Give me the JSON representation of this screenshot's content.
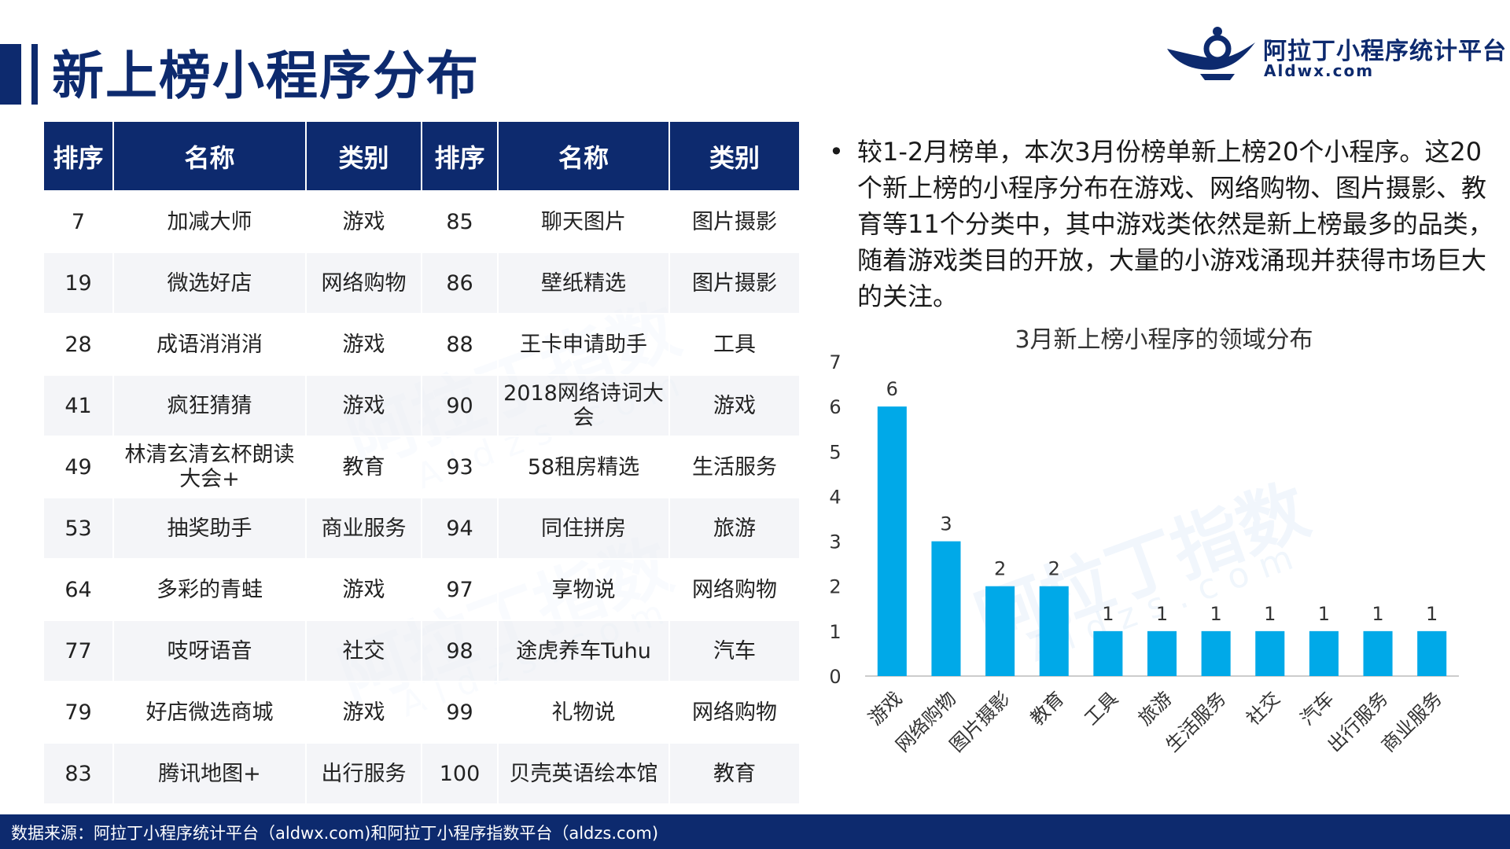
{
  "header": {
    "title": "新上榜小程序分布",
    "logo_name": "阿拉丁小程序统计平台",
    "logo_url": "Aldwx.com"
  },
  "watermark": {
    "text": "阿拉丁指数",
    "sub": "Aldzs.com"
  },
  "table": {
    "headers": [
      "排序",
      "名称",
      "类别",
      "排序",
      "名称",
      "类别"
    ],
    "rows": [
      [
        "7",
        "加减大师",
        "游戏",
        "85",
        "聊天图片",
        "图片摄影"
      ],
      [
        "19",
        "微选好店",
        "网络购物",
        "86",
        "壁纸精选",
        "图片摄影"
      ],
      [
        "28",
        "成语消消消",
        "游戏",
        "88",
        "王卡申请助手",
        "工具"
      ],
      [
        "41",
        "疯狂猜猜",
        "游戏",
        "90",
        "2018网络诗词大会",
        "游戏"
      ],
      [
        "49",
        "林清玄清玄杯朗读大会+",
        "教育",
        "93",
        "58租房精选",
        "生活服务"
      ],
      [
        "53",
        "抽奖助手",
        "商业服务",
        "94",
        "同住拼房",
        "旅游"
      ],
      [
        "64",
        "多彩的青蛙",
        "游戏",
        "97",
        "享物说",
        "网络购物"
      ],
      [
        "77",
        "吱呀语音",
        "社交",
        "98",
        "途虎养车Tuhu",
        "汽车"
      ],
      [
        "79",
        "好店微选商城",
        "游戏",
        "99",
        "礼物说",
        "网络购物"
      ],
      [
        "83",
        "腾讯地图+",
        "出行服务",
        "100",
        "贝壳英语绘本馆",
        "教育"
      ]
    ]
  },
  "note": {
    "bullet": "•",
    "text": "较1-2月榜单，本次3月份榜单新上榜20个小程序。这20个新上榜的小程序分布在游戏、网络购物、图片摄影、教育等11个分类中，其中游戏类依然是新上榜最多的品类，随着游戏类目的开放，大量的小游戏涌现并获得市场巨大的关注。"
  },
  "chart_data": {
    "type": "bar",
    "title": "3月新上榜小程序的领域分布",
    "categories": [
      "游戏",
      "网络购物",
      "图片摄影",
      "教育",
      "工具",
      "旅游",
      "生活服务",
      "社交",
      "汽车",
      "出行服务",
      "商业服务"
    ],
    "values": [
      6,
      3,
      2,
      2,
      1,
      1,
      1,
      1,
      1,
      1,
      1
    ],
    "ylim": [
      0,
      7
    ],
    "yticks": [
      0,
      1,
      2,
      3,
      4,
      5,
      6,
      7
    ],
    "xlabel": "",
    "ylabel": "",
    "grid": false,
    "data_labels": true,
    "bar_color": "#00a9e8"
  },
  "footer": {
    "source": "数据来源：阿拉丁小程序统计平台（aldwx.com)和阿拉丁小程序指数平台（aldzs.com)"
  },
  "colors": {
    "brand": "#0d2a6e",
    "bar": "#00a9e8"
  }
}
